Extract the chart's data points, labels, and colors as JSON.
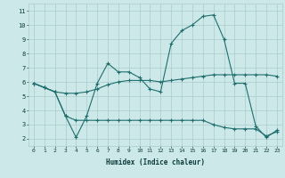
{
  "xlabel": "Humidex (Indice chaleur)",
  "bg_color": "#cde8e8",
  "grid_color": "#aacccc",
  "line_color": "#1e6e6e",
  "xlim": [
    -0.5,
    23.5
  ],
  "ylim": [
    1.5,
    11.5
  ],
  "xticks": [
    0,
    1,
    2,
    3,
    4,
    5,
    6,
    7,
    8,
    9,
    10,
    11,
    12,
    13,
    14,
    15,
    16,
    17,
    18,
    19,
    20,
    21,
    22,
    23
  ],
  "yticks": [
    2,
    3,
    4,
    5,
    6,
    7,
    8,
    9,
    10,
    11
  ],
  "series": [
    [
      5.9,
      5.6,
      5.3,
      3.6,
      2.1,
      3.6,
      5.9,
      7.3,
      6.7,
      6.7,
      6.3,
      5.5,
      5.3,
      8.7,
      9.6,
      10.0,
      10.6,
      10.7,
      9.0,
      5.9,
      5.9,
      2.9,
      2.1,
      2.6
    ],
    [
      5.9,
      5.6,
      5.3,
      5.2,
      5.2,
      5.3,
      5.5,
      5.8,
      6.0,
      6.1,
      6.1,
      6.1,
      6.0,
      6.1,
      6.2,
      6.3,
      6.4,
      6.5,
      6.5,
      6.5,
      6.5,
      6.5,
      6.5,
      6.4
    ],
    [
      5.9,
      5.6,
      5.3,
      3.6,
      3.3,
      3.3,
      3.3,
      3.3,
      3.3,
      3.3,
      3.3,
      3.3,
      3.3,
      3.3,
      3.3,
      3.3,
      3.3,
      3.0,
      2.8,
      2.7,
      2.7,
      2.7,
      2.2,
      2.5
    ]
  ],
  "figsize": [
    3.2,
    2.0
  ],
  "dpi": 100
}
